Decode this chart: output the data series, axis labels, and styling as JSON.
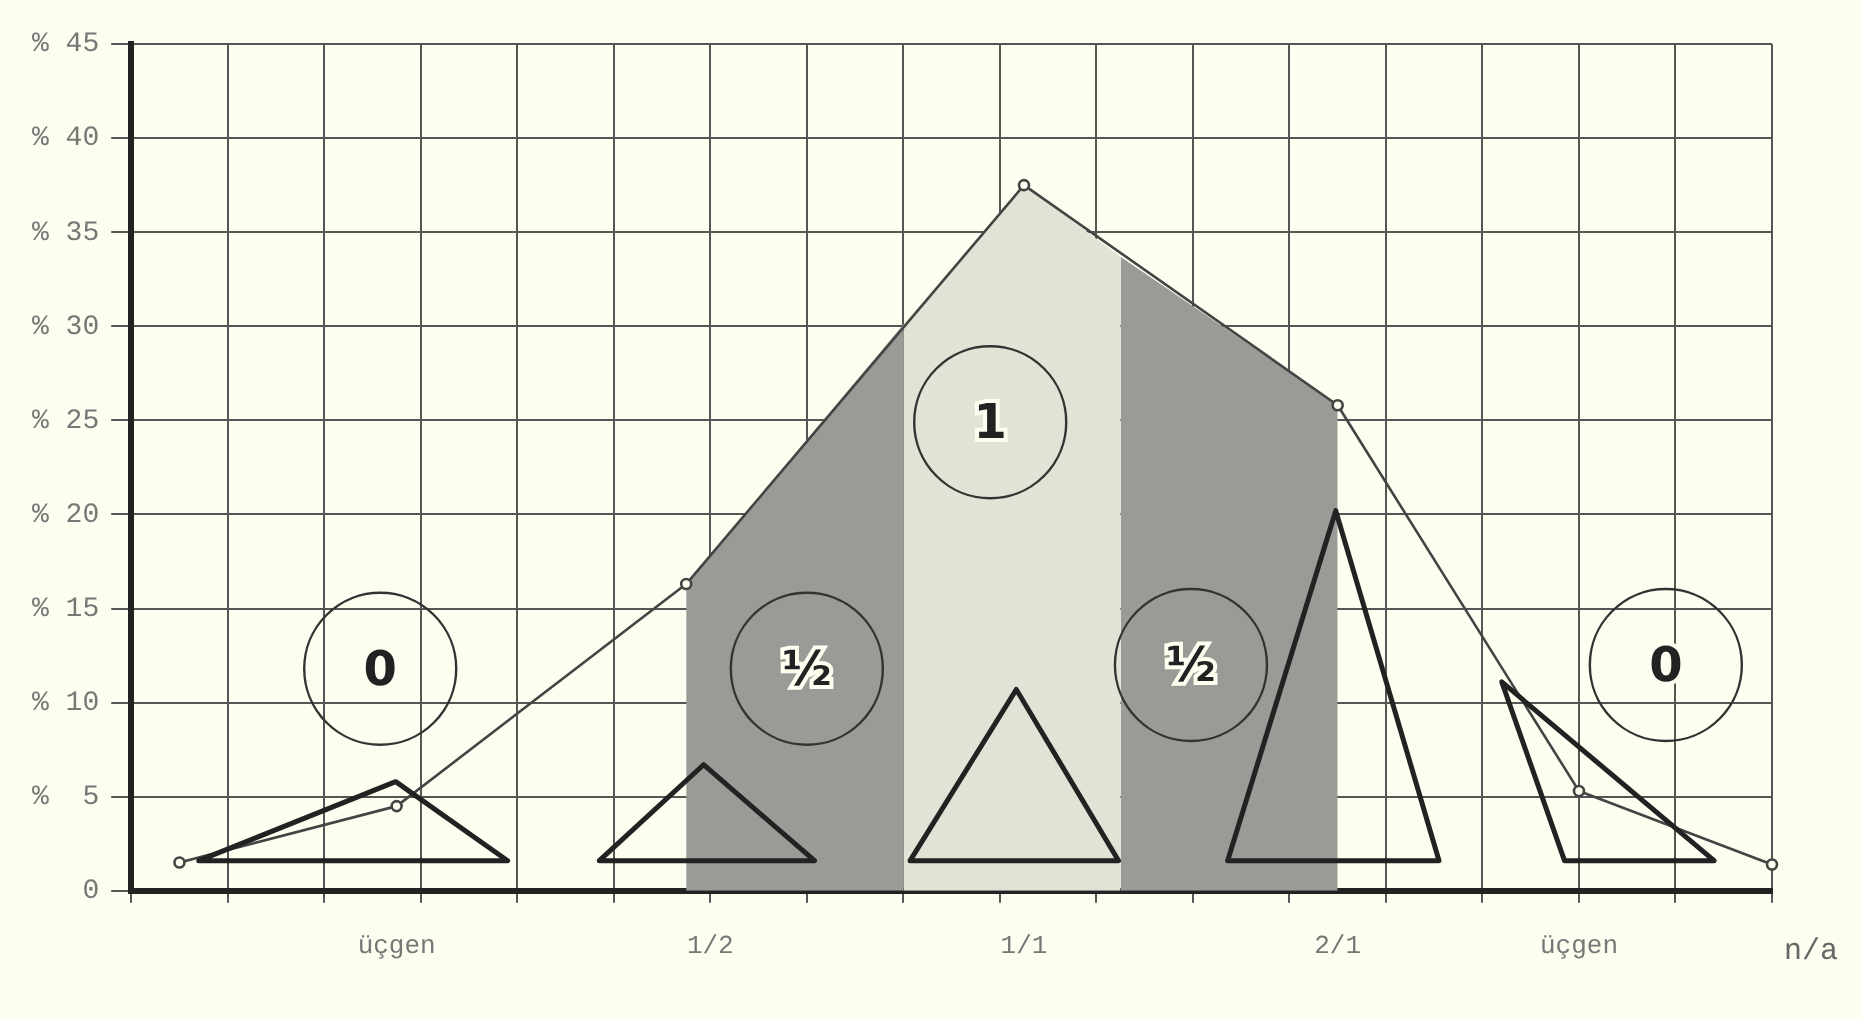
{
  "chart_data": {
    "type": "line",
    "xlabel": "n/a",
    "categories": [
      null,
      null,
      null,
      null,
      null,
      null,
      null,
      null,
      null,
      null,
      null,
      "üçgen",
      null,
      null,
      null,
      null,
      null,
      null,
      null,
      null,
      null,
      null,
      null,
      null,
      "1/2",
      null,
      null,
      null,
      null,
      null,
      null,
      null,
      null,
      null,
      null,
      null,
      null,
      "1/1",
      null,
      null,
      null,
      null,
      null,
      null,
      null,
      null,
      null,
      null,
      null,
      null,
      "2/1",
      null,
      null,
      null,
      null,
      null,
      null,
      null,
      null,
      null,
      "üçgen",
      null,
      null,
      null,
      null,
      null,
      null,
      null,
      null
    ],
    "ylim": [
      0,
      45
    ],
    "yticks": [
      {
        "value": 0,
        "label": "0"
      },
      {
        "value": 5,
        "label": "%  5"
      },
      {
        "value": 10,
        "label": "% 10"
      },
      {
        "value": 15,
        "label": "% 15"
      },
      {
        "value": 20,
        "label": "% 20"
      },
      {
        "value": 25,
        "label": "% 25"
      },
      {
        "value": 30,
        "label": "% 30"
      },
      {
        "value": 35,
        "label": "% 35"
      },
      {
        "value": 40,
        "label": "% 40"
      },
      {
        "value": 45,
        "label": "% 45"
      }
    ],
    "grid": true,
    "marker": "circle",
    "line_style": "solid",
    "series": [
      {
        "type": "area",
        "marker": "none",
        "color": "#9a9a96",
        "values": [
          null,
          null,
          null,
          null,
          null,
          null,
          null,
          null,
          null,
          null,
          null,
          null,
          null,
          null,
          null,
          null,
          null,
          null,
          null,
          null,
          null,
          null,
          null,
          16.3,
          null,
          null,
          null,
          null,
          null,
          null,
          null,
          null,
          30.1,
          null,
          null,
          null,
          null,
          null,
          null,
          null,
          null,
          null,
          null,
          null,
          null,
          null,
          null,
          null,
          null,
          null,
          null,
          null,
          null,
          null,
          null,
          null,
          null,
          null,
          null,
          null,
          null,
          null,
          null,
          null,
          null,
          null,
          null,
          null,
          null
        ]
      },
      {
        "type": "area",
        "marker": "none",
        "color": "#e2e2d6",
        "values": [
          null,
          null,
          null,
          null,
          null,
          null,
          null,
          null,
          null,
          null,
          null,
          null,
          null,
          null,
          null,
          null,
          null,
          null,
          null,
          null,
          null,
          null,
          null,
          null,
          null,
          null,
          null,
          null,
          null,
          null,
          null,
          null,
          30.1,
          null,
          null,
          null,
          null,
          37.5,
          null,
          null,
          null,
          33.7,
          null,
          null,
          null,
          null,
          null,
          null,
          null,
          null,
          null,
          null,
          null,
          null,
          null,
          null,
          null,
          null,
          null,
          null,
          null,
          null,
          null,
          null,
          null,
          null,
          null,
          null,
          null
        ]
      },
      {
        "type": "area",
        "marker": "none",
        "color": "#9a9a96",
        "values": [
          null,
          null,
          null,
          null,
          null,
          null,
          null,
          null,
          null,
          null,
          null,
          null,
          null,
          null,
          null,
          null,
          null,
          null,
          null,
          null,
          null,
          null,
          null,
          null,
          null,
          null,
          null,
          null,
          null,
          null,
          null,
          null,
          null,
          null,
          null,
          null,
          null,
          null,
          null,
          null,
          null,
          33.7,
          null,
          null,
          null,
          null,
          null,
          null,
          null,
          null,
          25.8,
          null,
          null,
          null,
          null,
          null,
          null,
          null,
          null,
          null,
          null,
          null,
          null,
          null,
          null,
          null,
          null,
          null,
          null
        ]
      },
      {
        "color": "#444444",
        "values": [
          null,
          null,
          1.5,
          null,
          null,
          null,
          null,
          null,
          null,
          null,
          null,
          4.5,
          null,
          null,
          null,
          null,
          null,
          null,
          null,
          null,
          null,
          null,
          null,
          16.3,
          null,
          null,
          null,
          null,
          null,
          null,
          null,
          null,
          null,
          null,
          null,
          null,
          null,
          37.5,
          null,
          null,
          null,
          null,
          null,
          null,
          null,
          null,
          null,
          null,
          null,
          null,
          25.8,
          null,
          null,
          null,
          null,
          null,
          null,
          null,
          null,
          null,
          5.3,
          null,
          null,
          null,
          null,
          null,
          null,
          null,
          1.4
        ]
      }
    ],
    "annotations": [
      "0",
      "½",
      "1",
      "½",
      "0"
    ]
  }
}
